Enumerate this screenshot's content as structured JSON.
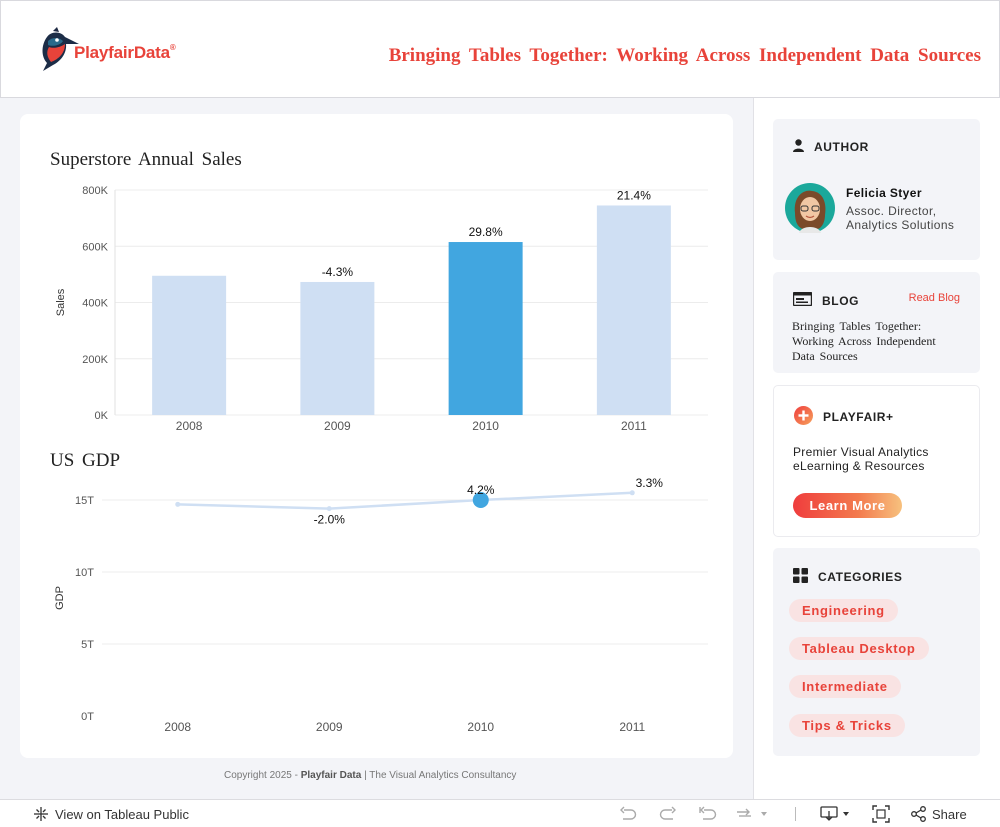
{
  "header": {
    "logo_text": "PlayfairData",
    "logo_reg": "®",
    "title": "Bringing Tables Together: Working Across Independent Data Sources"
  },
  "chart_data": [
    {
      "type": "bar",
      "title": "Superstore Annual Sales",
      "xlabel": "",
      "ylabel": "Sales",
      "categories": [
        "2008",
        "2009",
        "2010",
        "2011"
      ],
      "values": [
        495000,
        473000,
        615000,
        745000
      ],
      "data_labels": [
        "",
        "-4.3%",
        "29.8%",
        "21.4%"
      ],
      "highlight_index": 2,
      "yticks": [
        "0K",
        "200K",
        "400K",
        "600K",
        "800K"
      ],
      "ytick_values": [
        0,
        200000,
        400000,
        600000,
        800000
      ],
      "ylim": [
        0,
        800000
      ],
      "colors": {
        "bar": "#cfdff3",
        "highlight": "#41a6e0"
      },
      "grid": true
    },
    {
      "type": "line",
      "title": "US GDP",
      "xlabel": "",
      "ylabel": "GDP",
      "categories": [
        "2008",
        "2009",
        "2010",
        "2011"
      ],
      "values": [
        14.7,
        14.4,
        15.0,
        15.5
      ],
      "data_labels": [
        "",
        "-2.0%",
        "4.2%",
        "3.3%"
      ],
      "highlight_index": 2,
      "yticks": [
        "0T",
        "5T",
        "10T",
        "15T"
      ],
      "ytick_values": [
        0,
        5,
        10,
        15
      ],
      "ylim": [
        0,
        15
      ],
      "colors": {
        "line": "#cfdff3",
        "highlight": "#41a6e0"
      },
      "grid": true
    }
  ],
  "copyright": {
    "prefix": "Copyright 2025 - ",
    "brand": "Playfair Data",
    "suffix": " | The Visual Analytics Consultancy"
  },
  "sidebar": {
    "author": {
      "heading": "AUTHOR",
      "name": "Felicia Styer",
      "role": "Assoc. Director, Analytics Solutions"
    },
    "blog": {
      "heading": "BLOG",
      "link": "Read Blog",
      "text": "Bringing Tables Together: Working Across Independent Data Sources"
    },
    "playfair_plus": {
      "heading": "PLAYFAIR+",
      "text": "Premier Visual Analytics eLearning & Resources",
      "button": "Learn More"
    },
    "categories": {
      "heading": "CATEGORIES",
      "tags": [
        "Engineering",
        "Tableau Desktop",
        "Intermediate",
        "Tips & Tricks"
      ]
    }
  },
  "footer": {
    "view_on": "View on Tableau Public",
    "share": "Share"
  }
}
